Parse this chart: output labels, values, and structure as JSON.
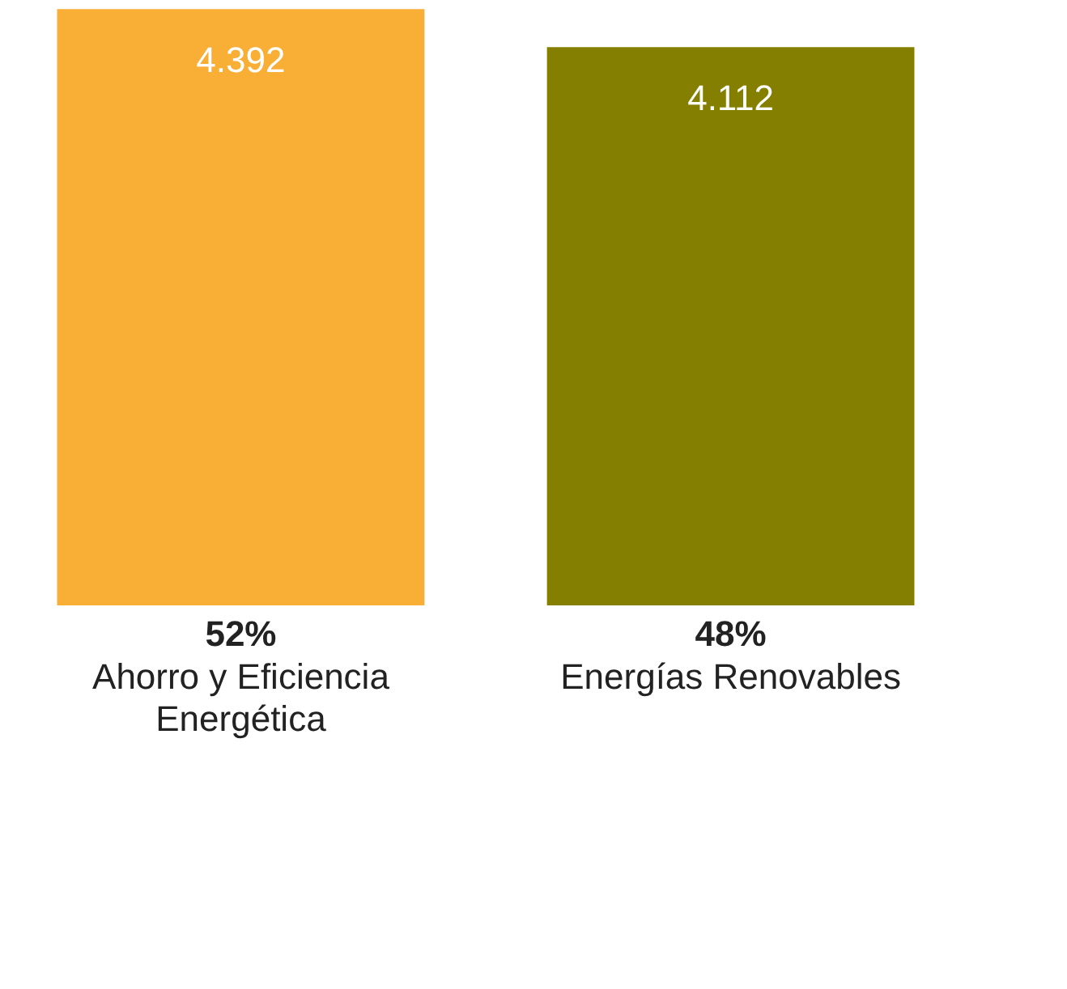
{
  "chart_data": {
    "type": "bar",
    "categories": [
      "Ahorro y Eficiencia Energética",
      "Energías Renovables"
    ],
    "values": [
      4392,
      4112
    ],
    "value_labels": [
      "4.392",
      "4.112"
    ],
    "colors": [
      "#f9ae36",
      "#857f00"
    ],
    "ylim": [
      0,
      4400
    ],
    "tick_labels": "x",
    "grid": false,
    "annotations": [
      "52%",
      "48%"
    ]
  }
}
